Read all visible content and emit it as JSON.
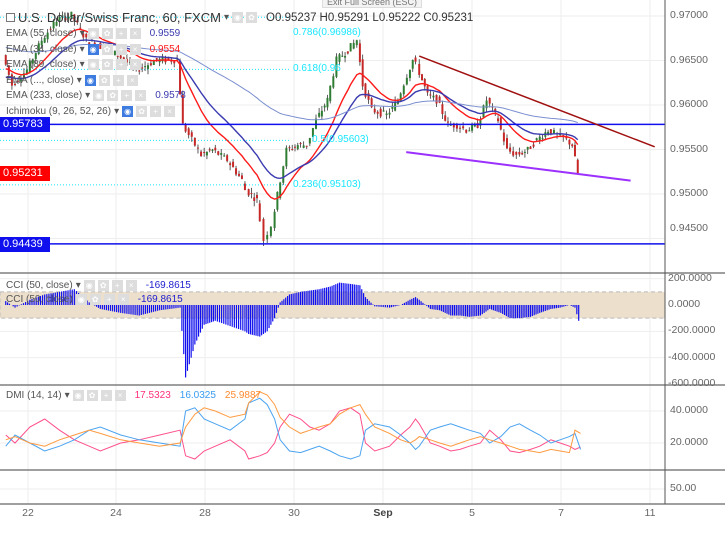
{
  "header": {
    "title": "U.S. Dollar/Swiss Franc, 60, FXCM",
    "open": "O0.95237",
    "high": "H0.95291",
    "low": "L0.95222",
    "close": "C0.95231",
    "exit_fullscreen": "Exit Full Screen (ESC)"
  },
  "indicators": [
    {
      "label": "EMA (55, close)",
      "value": "0.9559",
      "color": "#3b3bb0"
    },
    {
      "label": "EMA (34, close)",
      "value": "0.9554",
      "color": "#ff1a1a"
    },
    {
      "label": "EMA (89, close)",
      "value": "",
      "color": "#555"
    },
    {
      "label": "EMA (..., close)",
      "value": "",
      "color": "#555"
    },
    {
      "label": "EMA (233, close)",
      "value": "0.9578",
      "color": "#3b3bb0"
    },
    {
      "label": "Ichimoku (9, 26, 52, 26)",
      "value": "",
      "color": "#555"
    }
  ],
  "fib_levels": [
    {
      "label": "0.786(0.96986)",
      "price": 0.96986
    },
    {
      "label": "0.618(0.96",
      "price": 0.964
    },
    {
      "label": "0.5(0.95603)",
      "price": 0.95603
    },
    {
      "label": "0.236(0.95103)",
      "price": 0.95103
    }
  ],
  "cci_legend": [
    {
      "label": "CCI (50, close)",
      "value": "-169.8615"
    },
    {
      "label": "CCI (50, close)",
      "value": "-169.8615"
    }
  ],
  "dmi_legend": {
    "label": "DMI (14, 14)",
    "plus_di": "17.5323",
    "minus_di": "16.0325",
    "adx": "25.9887"
  },
  "colors": {
    "up": "#2e7d32",
    "down": "#c62828",
    "hline": "#1010ee",
    "resistance": "#a01010",
    "support": "#9b30ff",
    "cci": "#1010ee",
    "cci_band": "#ecdfcc",
    "plus_di": "#ff4f8b",
    "minus_di": "#4aa3f0",
    "adx": "#ff9a40",
    "last_price": "#ff0000"
  },
  "chart_data": [
    {
      "type": "candlestick",
      "title": "U.S. Dollar/Swiss Franc, 60, FXCM",
      "ylim": [
        0.9425,
        0.9715
      ],
      "yticks": [
        "0.97000",
        "0.96500",
        "0.96000",
        "0.95500",
        "0.95000",
        "0.94500"
      ],
      "xticks": [
        "22",
        "24",
        "28",
        "30",
        "Sep",
        "5",
        "7",
        "11"
      ],
      "horizontal_lines": [
        {
          "price": 0.95783,
          "label": "0.95783"
        },
        {
          "price": 0.94439,
          "label": "0.94439"
        }
      ],
      "last_price": {
        "price": 0.95231,
        "label": "0.95231"
      },
      "trendlines": [
        {
          "name": "resistance",
          "from": [
            "09-01 19:00",
            0.9655
          ],
          "to": [
            "09-11 02:00",
            0.9553
          ]
        },
        {
          "name": "support",
          "from": [
            "09-01 12:00",
            0.9547
          ],
          "to": [
            "09-08 13:00",
            0.9515
          ]
        }
      ],
      "series": [
        [
          "08-21 12:00",
          0.96562
        ],
        [
          "08-21 17:00",
          0.96225
        ],
        [
          "08-22 01:00",
          0.96393
        ],
        [
          "08-22 09:00",
          0.9673
        ],
        [
          "08-22 17:00",
          0.96955
        ],
        [
          "08-23 01:00",
          0.97011
        ],
        [
          "08-23 09:00",
          0.9673
        ],
        [
          "08-23 15:00",
          0.96674
        ],
        [
          "08-24 02:00",
          0.96562
        ],
        [
          "08-24 12:00",
          0.96393
        ],
        [
          "08-24 23:00",
          0.96506
        ],
        [
          "08-25 10:00",
          0.96506
        ],
        [
          "08-25 13:00",
          0.95775
        ],
        [
          "08-25 18:00",
          0.95607
        ],
        [
          "08-25 23:00",
          0.95438
        ],
        [
          "08-28 05:00",
          0.95494
        ],
        [
          "08-28 13:00",
          0.95382
        ],
        [
          "08-28 21:00",
          0.95157
        ],
        [
          "08-28 23:00",
          0.95045
        ],
        [
          "08-29 05:00",
          0.94933
        ],
        [
          "08-29 09:00",
          0.94483
        ],
        [
          "08-29 13:00",
          0.94652
        ],
        [
          "08-29 16:00",
          0.94989
        ],
        [
          "08-29 21:00",
          0.95494
        ],
        [
          "08-30 03:00",
          0.9555
        ],
        [
          "08-30 08:00",
          0.9555
        ],
        [
          "08-30 13:00",
          0.95831
        ],
        [
          "08-30 19:00",
          0.96056
        ],
        [
          "08-31 00:00",
          0.96506
        ],
        [
          "08-31 06:00",
          0.96618
        ],
        [
          "08-31 11:00",
          0.9673
        ],
        [
          "08-31 14:00",
          0.96225
        ],
        [
          "08-31 19:00",
          0.95944
        ],
        [
          "09-01 03:00",
          0.95888
        ],
        [
          "09-01 09:00",
          0.96056
        ],
        [
          "09-01 14:00",
          0.96337
        ],
        [
          "09-01 17:00",
          0.96506
        ],
        [
          "09-01 19:00",
          0.9645
        ],
        [
          "09-04 01:00",
          0.96112
        ],
        [
          "09-04 06:00",
          0.96056
        ],
        [
          "09-04 12:00",
          0.95775
        ],
        [
          "09-04 17:00",
          0.95775
        ],
        [
          "09-04 22:00",
          0.95719
        ],
        [
          "09-05 04:00",
          0.95775
        ],
        [
          "09-05 09:00",
          0.96056
        ],
        [
          "09-05 15:00",
          0.95831
        ],
        [
          "09-05 20:00",
          0.95494
        ],
        [
          "09-06 01:00",
          0.95438
        ],
        [
          "09-06 07:00",
          0.95494
        ],
        [
          "09-06 12:00",
          0.95607
        ],
        [
          "09-06 18:00",
          0.95719
        ],
        [
          "09-06 23:00",
          0.95663
        ],
        [
          "09-07 04:00",
          0.95607
        ],
        [
          "09-07 07:00",
          0.9555
        ],
        [
          "09-07 10:00",
          0.95231
        ]
      ]
    },
    {
      "type": "bar",
      "title": "CCI (50, close)",
      "ylim": [
        -600,
        200
      ],
      "yticks": [
        "200.0000",
        "0.0000",
        "-200.0000",
        "-400.0000",
        "-600.0000"
      ],
      "band": [
        -100,
        100
      ],
      "values": [
        30,
        -20,
        40,
        80,
        100,
        120,
        20,
        -30,
        -60,
        -80,
        -40,
        -20,
        -550,
        -300,
        -150,
        -120,
        -160,
        -200,
        -220,
        -240,
        -200,
        -100,
        20,
        80,
        100,
        110,
        120,
        140,
        170,
        160,
        150,
        60,
        -10,
        -20,
        0,
        40,
        60,
        40,
        -30,
        -40,
        -80,
        -80,
        -90,
        -80,
        -30,
        -60,
        -100,
        -100,
        -90,
        -60,
        -30,
        -20,
        0,
        -20,
        -170
      ]
    },
    {
      "type": "line",
      "title": "DMI (14, 14)",
      "yticks": [
        "40.0000",
        "20.0000"
      ],
      "series": [
        {
          "name": "+DI",
          "values": [
            25,
            20,
            30,
            35,
            28,
            22,
            18,
            15,
            20,
            22,
            25,
            28,
            12,
            10,
            15,
            18,
            22,
            15,
            10,
            12,
            14,
            20,
            30,
            38,
            35,
            30,
            28,
            32,
            40,
            42,
            38,
            20,
            15,
            18,
            25,
            30,
            35,
            32,
            20,
            18,
            15,
            16,
            18,
            20,
            28,
            22,
            15,
            14,
            16,
            18,
            22,
            20,
            18,
            16,
            17.5
          ]
        },
        {
          "name": "-DI",
          "values": [
            18,
            25,
            20,
            15,
            18,
            22,
            28,
            30,
            25,
            22,
            20,
            18,
            40,
            42,
            35,
            32,
            28,
            35,
            45,
            48,
            44,
            35,
            22,
            15,
            14,
            16,
            18,
            15,
            12,
            10,
            12,
            28,
            32,
            30,
            25,
            20,
            16,
            18,
            28,
            30,
            32,
            30,
            28,
            26,
            20,
            24,
            30,
            32,
            28,
            25,
            20,
            22,
            24,
            26,
            16
          ]
        },
        {
          "name": "ADX",
          "values": [
            22,
            24,
            20,
            18,
            22,
            25,
            28,
            26,
            22,
            20,
            18,
            20,
            30,
            38,
            42,
            40,
            36,
            38,
            45,
            52,
            50,
            44,
            36,
            30,
            26,
            28,
            30,
            32,
            38,
            42,
            44,
            38,
            30,
            26,
            22,
            20,
            22,
            24,
            22,
            20,
            18,
            20,
            22,
            24,
            22,
            20,
            18,
            16,
            15,
            14,
            16,
            15,
            14,
            28,
            26
          ]
        }
      ]
    },
    {
      "type": "axis",
      "yticks": [
        "50.00"
      ]
    }
  ],
  "date_axis": [
    "22",
    "24",
    "28",
    "30",
    "Sep",
    "5",
    "7",
    "11"
  ]
}
